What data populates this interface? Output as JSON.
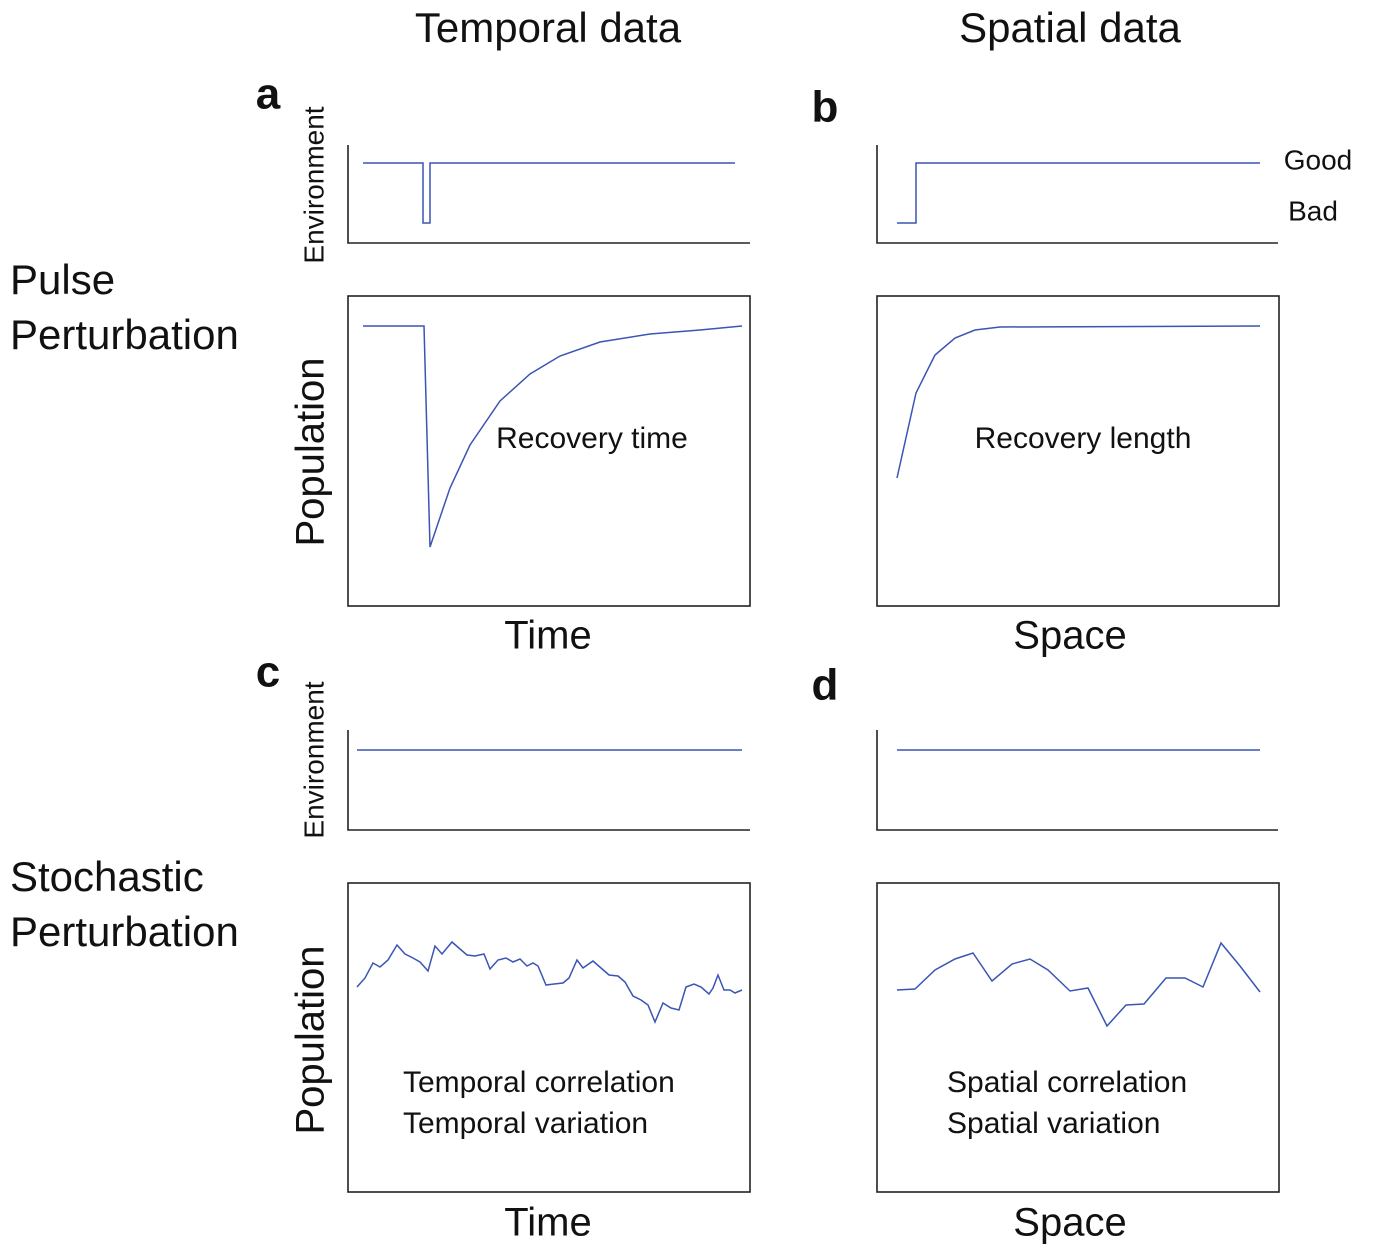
{
  "columns": [
    "Temporal data",
    "Spatial data"
  ],
  "rows": [
    {
      "label": [
        "Pulse",
        "Perturbation"
      ]
    },
    {
      "label": [
        "Stochastic",
        "Perturbation"
      ]
    }
  ],
  "levels": [
    "Good",
    "Bad"
  ],
  "panels": [
    {
      "letter": "a",
      "env_label": "Environment",
      "pop_label": "Population",
      "annotation": [
        "Recovery time"
      ],
      "x_label": "Time"
    },
    {
      "letter": "b",
      "annotation": [
        "Recovery length"
      ],
      "x_label": "Space"
    },
    {
      "letter": "c",
      "env_label": "Environment",
      "pop_label": "Population",
      "annotation": [
        "Temporal correlation",
        "Temporal variation"
      ],
      "x_label": "Time"
    },
    {
      "letter": "d",
      "annotation": [
        "Spatial correlation",
        "Spatial variation"
      ],
      "x_label": "Space"
    }
  ]
}
